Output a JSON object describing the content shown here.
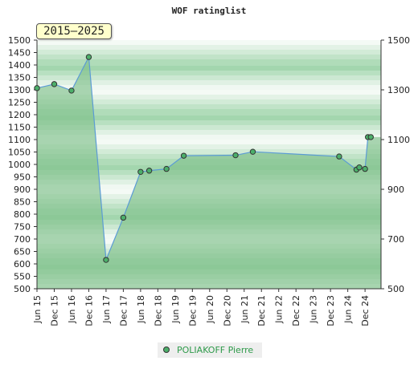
{
  "chart_data": {
    "type": "area",
    "title": "WOF ratinglist",
    "period_badge": "2015–2025",
    "ylim": [
      500,
      1500
    ],
    "y_ticks_left": [
      "500",
      "550",
      "600",
      "650",
      "700",
      "750",
      "800",
      "850",
      "900",
      "950",
      "1000",
      "1050",
      "1100",
      "1150",
      "1200",
      "1250",
      "1300",
      "1350",
      "1400",
      "1450",
      "1500"
    ],
    "y_ticks_right": [
      "500",
      "700",
      "900",
      "1100",
      "1300",
      "1500"
    ],
    "x_ticks": [
      "Jun 15",
      "Dec 15",
      "Jun 16",
      "Dec 16",
      "Jun 17",
      "Dec 17",
      "Jun 18",
      "Dec 18",
      "Jun 19",
      "Dec 19",
      "Jun 20",
      "Dec 20",
      "Jun 21",
      "Dec 21",
      "Jun 22",
      "Dec 22",
      "Jun 23",
      "Dec 23",
      "Jun 24",
      "Dec 24"
    ],
    "grid": false,
    "legend_position": "bottom-center",
    "series": [
      {
        "name": "POLIAKOFF Pierre",
        "color": "#2e9a4a",
        "fill": "#7fc08a",
        "line_color": "#5b9bd5",
        "points": [
          {
            "x": "2015-06",
            "y": 1307
          },
          {
            "x": "2015-12",
            "y": 1323
          },
          {
            "x": "2016-06",
            "y": 1297
          },
          {
            "x": "2016-12",
            "y": 1432
          },
          {
            "x": "2017-06",
            "y": 616
          },
          {
            "x": "2017-12",
            "y": 786
          },
          {
            "x": "2018-06",
            "y": 970
          },
          {
            "x": "2018-09",
            "y": 975
          },
          {
            "x": "2019-03",
            "y": 982
          },
          {
            "x": "2019-09",
            "y": 1035
          },
          {
            "x": "2021-03",
            "y": 1037
          },
          {
            "x": "2021-09",
            "y": 1051
          },
          {
            "x": "2024-03",
            "y": 1032
          },
          {
            "x": "2024-09",
            "y": 979
          },
          {
            "x": "2024-10",
            "y": 988
          },
          {
            "x": "2024-12",
            "y": 982
          },
          {
            "x": "2025-01",
            "y": 1110
          },
          {
            "x": "2025-02",
            "y": 1110
          }
        ]
      }
    ]
  },
  "legend": {
    "label": "POLIAKOFF Pierre",
    "icon": "green-dot-icon"
  }
}
